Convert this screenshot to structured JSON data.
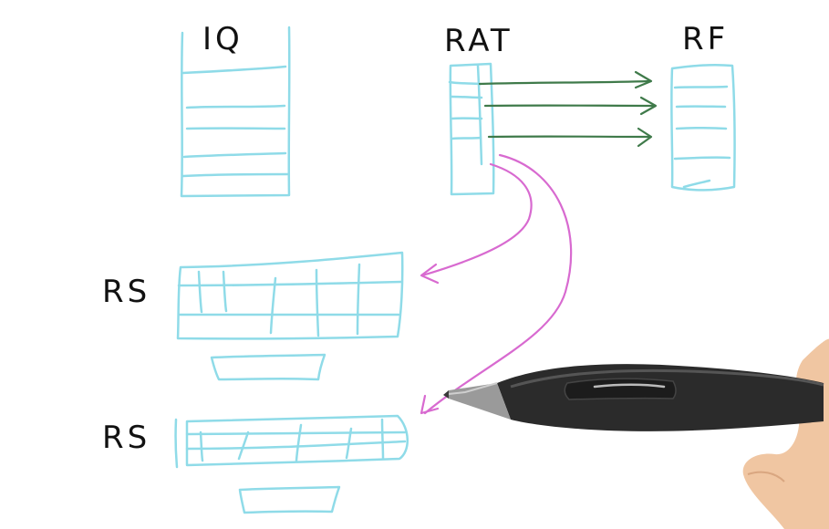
{
  "labels": {
    "iq": "IQ",
    "rat": "RAT",
    "rf": "RF",
    "rs_top": "RS",
    "rs_bottom": "RS"
  },
  "colors": {
    "structure_lines": "#8fdbe8",
    "rat_to_rf_arrows": "#3f7a4a",
    "rat_to_rs_arrows": "#d86ad0",
    "label_ink": "#111111",
    "pen_body": "#2b2b2b",
    "hand": "#f0c6a2"
  },
  "icons": {
    "pen": "stylus-pen-icon",
    "hand": "hand-icon"
  }
}
